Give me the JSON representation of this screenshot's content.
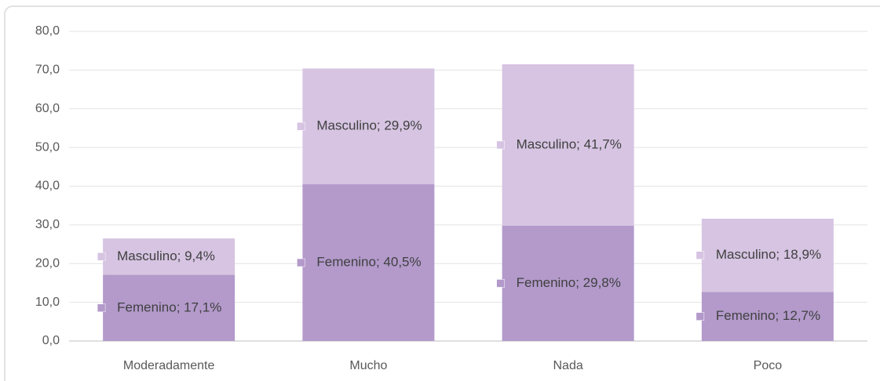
{
  "chart_data": {
    "type": "stacked-bar",
    "categories": [
      "Moderadamente",
      "Mucho",
      "Nada",
      "Poco"
    ],
    "series": [
      {
        "name": "Femenino",
        "color": "#b39acb",
        "values": [
          17.1,
          40.5,
          29.8,
          12.7
        ],
        "value_labels": [
          "Femenino; 17,1%",
          "Femenino; 40,5%",
          "Femenino; 29,8%",
          "Femenino; 12,7%"
        ]
      },
      {
        "name": "Masculino",
        "color": "#d6c4e2",
        "values": [
          9.4,
          29.9,
          41.7,
          18.9
        ],
        "value_labels": [
          "Masculino; 9,4%",
          "Masculino; 29,9%",
          "Masculino; 41,7%",
          "Masculino; 18,9%"
        ]
      }
    ],
    "ylim": [
      0,
      80
    ],
    "yticks": [
      {
        "value": 0,
        "label": "0,0"
      },
      {
        "value": 10,
        "label": "10,0"
      },
      {
        "value": 20,
        "label": "20,0"
      },
      {
        "value": 30,
        "label": "30,0"
      },
      {
        "value": 40,
        "label": "40,0"
      },
      {
        "value": 50,
        "label": "50,0"
      },
      {
        "value": 60,
        "label": "60,0"
      },
      {
        "value": 70,
        "label": "70,0"
      },
      {
        "value": 80,
        "label": "80,0"
      }
    ],
    "grid": true
  }
}
